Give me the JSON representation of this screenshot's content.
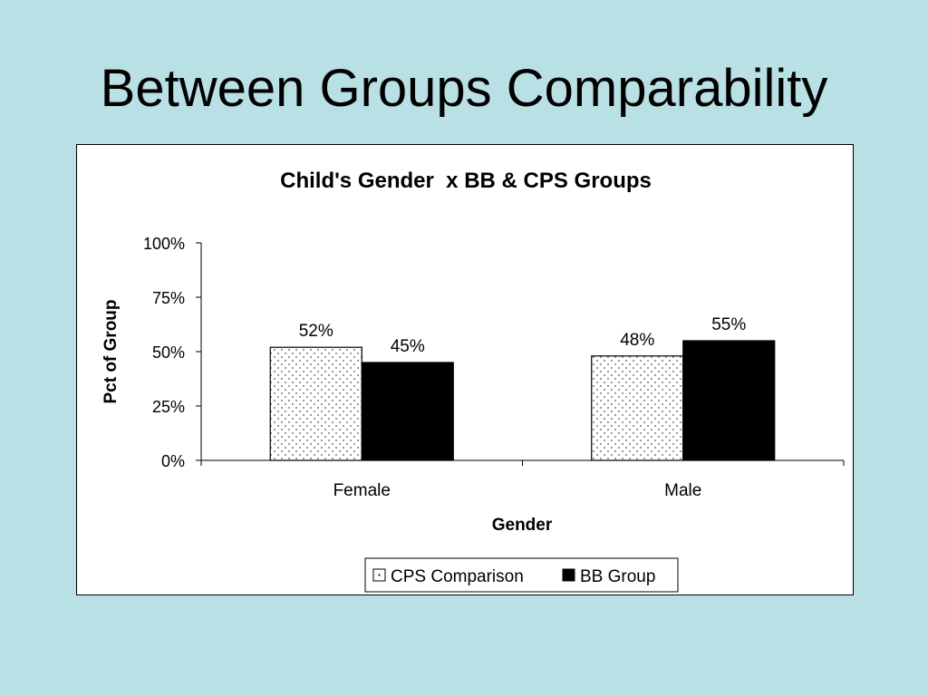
{
  "slide": {
    "title": "Between Groups Comparability",
    "background": "#b9e0e4"
  },
  "chart_data": {
    "type": "bar",
    "title": "Child's Gender  x BB & CPS Groups",
    "xlabel": "Gender",
    "ylabel": "Pct of Group",
    "categories": [
      "Female",
      "Male"
    ],
    "series": [
      {
        "name": "CPS Comparison",
        "values": [
          52,
          48
        ],
        "labels": [
          "52%",
          "48%"
        ],
        "fill": "dotted",
        "color": "#ffffff"
      },
      {
        "name": "BB Group",
        "values": [
          45,
          55
        ],
        "labels": [
          "45%",
          "55%"
        ],
        "fill": "solid",
        "color": "#000000"
      }
    ],
    "ylim": [
      0,
      100
    ],
    "yticks": [
      0,
      25,
      50,
      75,
      100
    ],
    "ytick_labels": [
      "0%",
      "25%",
      "50%",
      "75%",
      "100%"
    ],
    "grid": false,
    "legend_position": "bottom"
  }
}
